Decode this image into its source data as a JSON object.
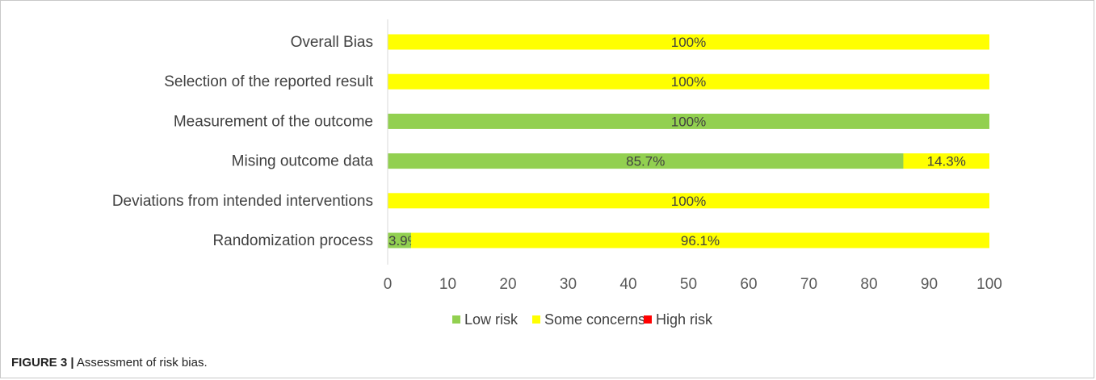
{
  "chart_data": {
    "type": "bar",
    "orientation": "horizontal",
    "stacked": true,
    "categories": [
      "Overall Bias",
      "Selection of the reported result",
      "Measurement of the outcome",
      "Mising outcome data",
      "Deviations from intended interventions",
      "Randomization process"
    ],
    "series": [
      {
        "name": "Low risk",
        "color": "#92d050",
        "values": [
          0,
          0,
          100,
          85.7,
          0,
          3.9
        ],
        "labels": [
          "",
          "",
          "100%",
          "85.7%",
          "",
          "3.9%"
        ]
      },
      {
        "name": "Some concerns",
        "color": "#ffff00",
        "values": [
          100,
          100,
          0,
          14.3,
          100,
          96.1
        ],
        "labels": [
          "100%",
          "100%",
          "",
          "14.3%",
          "100%",
          "96.1%"
        ]
      },
      {
        "name": "High risk",
        "color": "#ff0000",
        "values": [
          0,
          0,
          0,
          0,
          0,
          0
        ],
        "labels": [
          "",
          "",
          "",
          "",
          "",
          ""
        ]
      }
    ],
    "xlim": [
      0,
      100
    ],
    "xticks": [
      "0",
      "10",
      "20",
      "30",
      "40",
      "50",
      "60",
      "70",
      "80",
      "90",
      "100"
    ],
    "legend_position": "bottom",
    "grid": false
  },
  "caption": {
    "figure_number": "FIGURE 3 |",
    "text": " Assessment of risk bias."
  }
}
